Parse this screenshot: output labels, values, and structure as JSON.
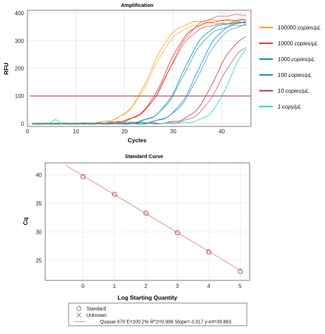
{
  "chart_data": [
    {
      "type": "line",
      "title": "Amplification",
      "xlabel": "Cycles",
      "ylabel": "RFU",
      "xlim": [
        0,
        46
      ],
      "ylim": [
        -10,
        410
      ],
      "x_ticks": [
        "0",
        "10",
        "20",
        "30",
        "40"
      ],
      "y_ticks": [
        "0",
        "100",
        "200",
        "300",
        "400"
      ],
      "grid": true,
      "legend_position": "right",
      "threshold": 100,
      "series": [
        {
          "name": "100000 copies/μL",
          "color": "#f5a623",
          "curves": [
            {
              "mid": 25.3,
              "plateau": 375,
              "k": 0.42
            },
            {
              "mid": 25.6,
              "plateau": 365,
              "k": 0.4
            }
          ]
        },
        {
          "name": "10000 copies/μL",
          "color": "#e53935",
          "curves": [
            {
              "mid": 28.5,
              "plateau": 375,
              "k": 0.42
            },
            {
              "mid": 28.9,
              "plateau": 365,
              "k": 0.4
            },
            {
              "mid": 29.2,
              "plateau": 395,
              "k": 0.38
            }
          ]
        },
        {
          "name": "1000 copies/μL",
          "color": "#0e9b9b",
          "curves": [
            {
              "mid": 32.0,
              "plateau": 370,
              "k": 0.42
            },
            {
              "mid": 32.3,
              "plateau": 360,
              "k": 0.4
            }
          ]
        },
        {
          "name": "100 copies/μL",
          "color": "#1e90d6",
          "curves": [
            {
              "mid": 35.0,
              "plateau": 375,
              "k": 0.42
            },
            {
              "mid": 35.4,
              "plateau": 365,
              "k": 0.4
            }
          ]
        },
        {
          "name": "10 copies/μL",
          "color": "#b04a5a",
          "curves": [
            {
              "mid": 38.6,
              "plateau": 330,
              "k": 0.45
            },
            {
              "mid": 39.6,
              "plateau": 300,
              "k": 0.45
            }
          ]
        },
        {
          "name": "1 copy/μL",
          "color": "#2ee0a8",
          "curves": [
            {
              "mid": 41.6,
              "plateau": 320,
              "k": 0.5
            }
          ]
        }
      ],
      "legend_colors": [
        "#f5a623",
        "#e53935",
        "#0e9b9b",
        "#1e90d6",
        "#b04a5a",
        "#2ee0a8"
      ]
    },
    {
      "type": "scatter",
      "title": "Standard Curve",
      "xlabel": "Log Starting Quantity",
      "ylabel": "Cq",
      "xlim": [
        -1.2,
        5.3
      ],
      "ylim": [
        21.5,
        42.1
      ],
      "x_ticks": [
        "0",
        "1",
        "2",
        "3",
        "4",
        "5"
      ],
      "y_ticks": [
        "25",
        "30",
        "35",
        "40"
      ],
      "grid": true,
      "points": [
        {
          "x": 0,
          "y": 39.7
        },
        {
          "x": 1,
          "y": 36.6
        },
        {
          "x": 2,
          "y": 33.3
        },
        {
          "x": 3,
          "y": 29.9
        },
        {
          "x": 4,
          "y": 26.5
        },
        {
          "x": 5,
          "y": 23.1
        }
      ],
      "fit": {
        "slope": -3.317,
        "intercept": 39.863,
        "x_range": [
          -0.55,
          5.05
        ],
        "color": "#d98b8b"
      },
      "legend": [
        {
          "symbol": "circle",
          "label": "Standard"
        },
        {
          "symbol": "cross",
          "label": "Unknown"
        },
        {
          "symbol": "line",
          "label": "Quasar 670 E=100.2% R^2=0.999 Slope=-3.317 y-int=39.863"
        }
      ]
    }
  ]
}
